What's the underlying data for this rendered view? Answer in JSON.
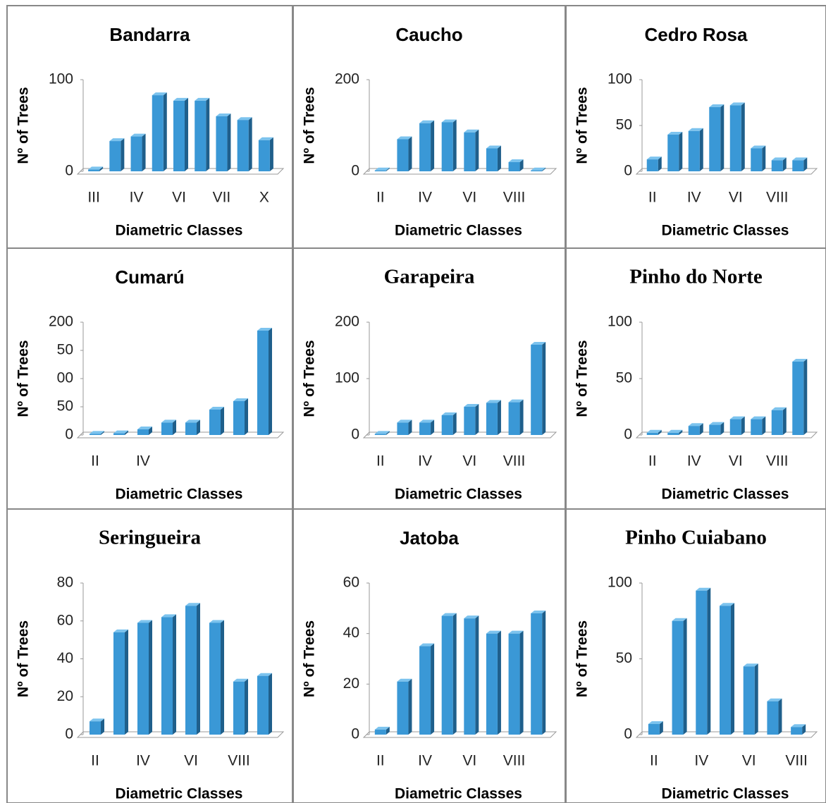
{
  "chart_data": [
    {
      "type": "bar",
      "title": "Bandarra",
      "x_label": "Diametric Classes",
      "y_label": "Nº of Trees",
      "color": "#3a98d6",
      "categories": [
        "III",
        null,
        "IV",
        null,
        "VI",
        null,
        "VII",
        null,
        "X"
      ],
      "values": [
        2,
        33,
        38,
        83,
        77,
        77,
        60,
        56,
        34
      ],
      "ylim": [
        0,
        100
      ],
      "yticks": [
        0,
        100
      ]
    },
    {
      "type": "bar",
      "title": "Caucho",
      "x_label": "Diametric Classes",
      "y_label": "Nº of Trees",
      "color": "#3a98d6",
      "categories": [
        "II",
        null,
        "IV",
        null,
        "VI",
        null,
        "VIII",
        null
      ],
      "values": [
        2,
        70,
        105,
        107,
        85,
        50,
        20,
        2
      ],
      "ylim": [
        0,
        200
      ],
      "yticks": [
        0,
        200
      ]
    },
    {
      "type": "bar",
      "title": "Cedro Rosa",
      "x_label": "Diametric Classes",
      "y_label": "Nº of Trees",
      "color": "#3a98d6",
      "categories": [
        "II",
        null,
        "IV",
        null,
        "VI",
        null,
        "VIII",
        null
      ],
      "values": [
        13,
        40,
        44,
        70,
        72,
        25,
        12,
        12
      ],
      "ylim": [
        0,
        100
      ],
      "yticks": [
        0,
        50,
        100
      ]
    },
    {
      "type": "bar",
      "title": "Cumarú",
      "x_label": "Diametric Classes",
      "y_label": "Nº of Trees",
      "color": "#3a98d6",
      "categories": [
        "II",
        null,
        "IV",
        null,
        null,
        null,
        null,
        null
      ],
      "values": [
        2,
        3,
        10,
        22,
        22,
        45,
        60,
        185
      ],
      "ylim": [
        0,
        200
      ],
      "yticks": [
        0,
        50,
        {
          "value": 100,
          "label": "00"
        },
        {
          "value": 150,
          "label": "50"
        },
        200
      ]
    },
    {
      "type": "bar",
      "title": "Garapeira",
      "x_label": "Diametric Classes",
      "y_label": "Nº of Trees",
      "color": "#3a98d6",
      "categories": [
        "II",
        null,
        "IV",
        null,
        "VI",
        null,
        "VIII",
        null
      ],
      "values": [
        2,
        22,
        22,
        35,
        50,
        57,
        58,
        160
      ],
      "ylim": [
        0,
        200
      ],
      "yticks": [
        0,
        100,
        200
      ]
    },
    {
      "type": "bar",
      "title": "Pinho do Norte",
      "x_label": "Diametric Classes",
      "y_label": "Nº of Trees",
      "color": "#3a98d6",
      "categories": [
        "II",
        null,
        "IV",
        null,
        "VI",
        null,
        "VIII",
        null
      ],
      "values": [
        2,
        2,
        8,
        9,
        14,
        14,
        22,
        65
      ],
      "ylim": [
        0,
        100
      ],
      "yticks": [
        0,
        50,
        100
      ]
    },
    {
      "type": "bar",
      "title": "Seringueira",
      "x_label": "Diametric Classes",
      "y_label": "Nº of Trees",
      "color": "#3a98d6",
      "categories": [
        "II",
        null,
        "IV",
        null,
        "VI",
        null,
        "VIII",
        null
      ],
      "values": [
        7,
        54,
        59,
        62,
        68,
        59,
        28,
        31
      ],
      "ylim": [
        0,
        80
      ],
      "yticks": [
        0,
        20,
        40,
        60,
        80
      ]
    },
    {
      "type": "bar",
      "title": "Jatoba",
      "x_label": "Diametric Classes",
      "y_label": "Nº of Trees",
      "color": "#3a98d6",
      "categories": [
        "II",
        null,
        "IV",
        null,
        "VI",
        null,
        "VIII",
        null
      ],
      "values": [
        2,
        21,
        35,
        47,
        46,
        40,
        40,
        48
      ],
      "ylim": [
        0,
        60
      ],
      "yticks": [
        0,
        20,
        40,
        60
      ]
    },
    {
      "type": "bar",
      "title": "Pinho Cuiabano",
      "x_label": "Diametric Classes",
      "y_label": "Nº of Trees",
      "color": "#3a98d6",
      "categories": [
        "II",
        null,
        "IV",
        null,
        "VI",
        null,
        "VIII"
      ],
      "values": [
        7,
        75,
        95,
        85,
        45,
        22,
        5
      ],
      "ylim": [
        0,
        100
      ],
      "yticks": [
        0,
        50,
        100
      ]
    }
  ]
}
